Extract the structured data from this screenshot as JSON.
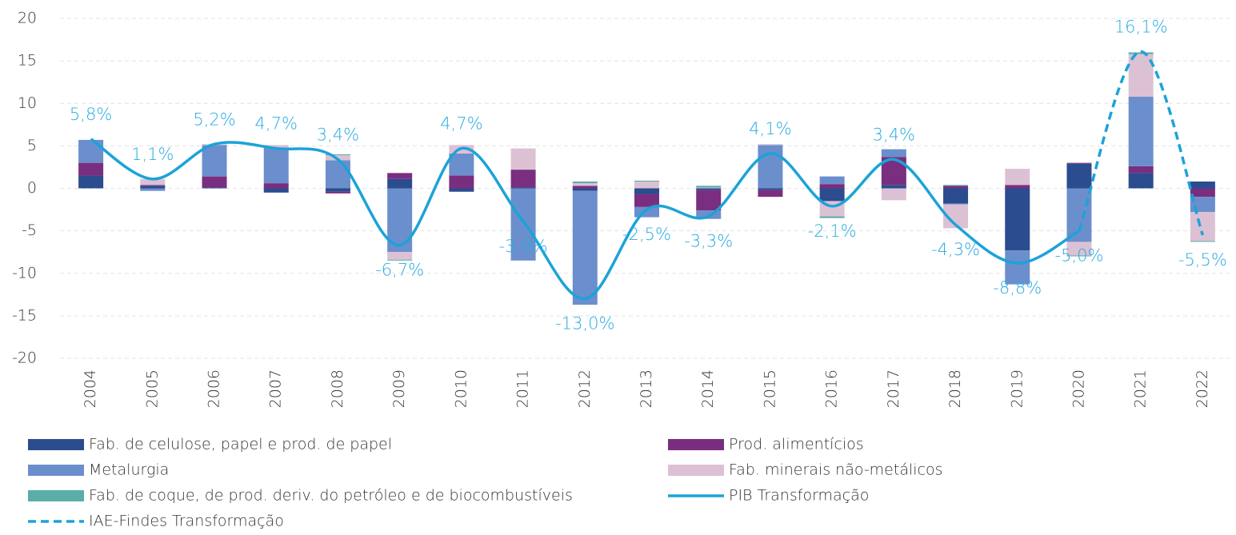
{
  "chart_data": {
    "type": "bar",
    "stacked": true,
    "categories": [
      "2004",
      "2005",
      "2006",
      "2007",
      "2008",
      "2009",
      "2010",
      "2011",
      "2012",
      "2013",
      "2014",
      "2015",
      "2016",
      "2017",
      "2018",
      "2019",
      "2020",
      "2021",
      "2022"
    ],
    "ylim": [
      -20,
      20
    ],
    "yticks": [
      -20,
      -15,
      -10,
      -5,
      0,
      5,
      10,
      15,
      20
    ],
    "grid": true,
    "series": [
      {
        "name": "Fab. de celulose, papel e prod. de papel",
        "type": "bar",
        "color": "#2b4c8e",
        "values": [
          1.5,
          0.3,
          0.1,
          -0.5,
          -0.4,
          1.1,
          -0.4,
          0.1,
          -0.3,
          -0.7,
          -0.2,
          -0.2,
          -1.5,
          0.4,
          -1.8,
          -7.3,
          2.9,
          1.8,
          0.8
        ]
      },
      {
        "name": "Prod. alimentícios",
        "type": "bar",
        "color": "#7a2e80",
        "values": [
          1.5,
          0.1,
          1.3,
          0.6,
          -0.2,
          0.7,
          1.5,
          2.1,
          0.3,
          -1.5,
          -2.4,
          -0.8,
          0.5,
          3.3,
          0.3,
          0.4,
          0.1,
          0.8,
          -1.0
        ]
      },
      {
        "name": "Metalurgia",
        "type": "bar",
        "color": "#6b8fcc",
        "values": [
          2.7,
          -0.3,
          3.7,
          4.2,
          3.3,
          -7.5,
          2.6,
          -8.5,
          -13.4,
          -1.2,
          -1.0,
          5.1,
          0.9,
          0.9,
          -0.1,
          -4.0,
          -6.3,
          8.2,
          -1.8
        ]
      },
      {
        "name": "Fab. minerais não-metálicos",
        "type": "bar",
        "color": "#dcc1d5",
        "values": [
          0,
          0.7,
          0.1,
          0.3,
          0.6,
          -0.9,
          1.0,
          2.5,
          0.3,
          0.8,
          0.1,
          0.1,
          -1.8,
          -1.4,
          -2.8,
          1.9,
          -1.6,
          5.0,
          -3.4
        ]
      },
      {
        "name": "Fab. de coque, de prod. deriv. do petróleo e de biocombustíveis",
        "type": "bar",
        "color": "#5aaea8",
        "values": [
          0,
          0,
          0,
          0,
          0.1,
          -0.1,
          0,
          0,
          0.2,
          0.1,
          0.2,
          0,
          -0.2,
          0,
          0.1,
          0,
          -0.1,
          0.2,
          -0.1
        ]
      },
      {
        "name": "PIB Transformação",
        "type": "line",
        "color": "#1ba3d8",
        "dashed": false,
        "values": [
          5.8,
          1.1,
          5.2,
          4.7,
          3.4,
          -6.7,
          4.7,
          -3.9,
          -13.0,
          -2.5,
          -3.3,
          4.1,
          -2.1,
          3.4,
          -4.3,
          -8.8,
          -5.0,
          null,
          null
        ],
        "value_labels": [
          "5,8%",
          "1,1%",
          "5,2%",
          "4,7%",
          "3,4%",
          "-6,7%",
          "4,7%",
          "-3,9%",
          "-13,0%",
          "-2,5%",
          "-3,3%",
          "4,1%",
          "-2,1%",
          "3,4%",
          "-4,3%",
          "-8,8%",
          "-5,0%",
          null,
          null
        ]
      },
      {
        "name": "IAE-Findes Transformação",
        "type": "line",
        "color": "#1ba3d8",
        "dashed": true,
        "values": [
          null,
          null,
          null,
          null,
          null,
          null,
          null,
          null,
          null,
          null,
          null,
          null,
          null,
          null,
          null,
          null,
          -5.0,
          16.1,
          -5.5
        ],
        "value_labels": [
          null,
          null,
          null,
          null,
          null,
          null,
          null,
          null,
          null,
          null,
          null,
          null,
          null,
          null,
          null,
          null,
          null,
          "16,1%",
          "-5,5%"
        ]
      }
    ]
  }
}
